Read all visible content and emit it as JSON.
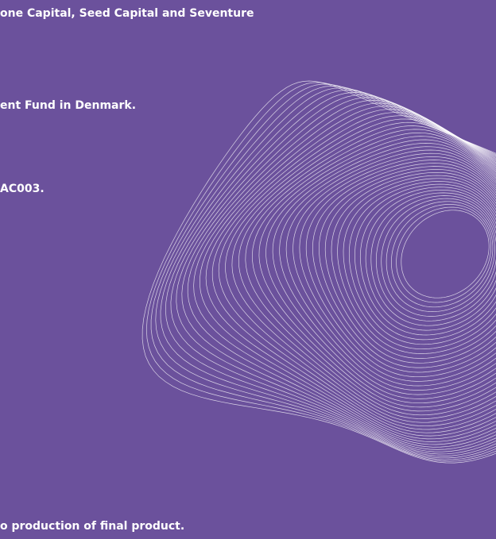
{
  "lines": [
    "one Capital, Seed Capital and Seventure",
    "ent Fund in Denmark.",
    "AC003.",
    "o production of final product."
  ]
}
